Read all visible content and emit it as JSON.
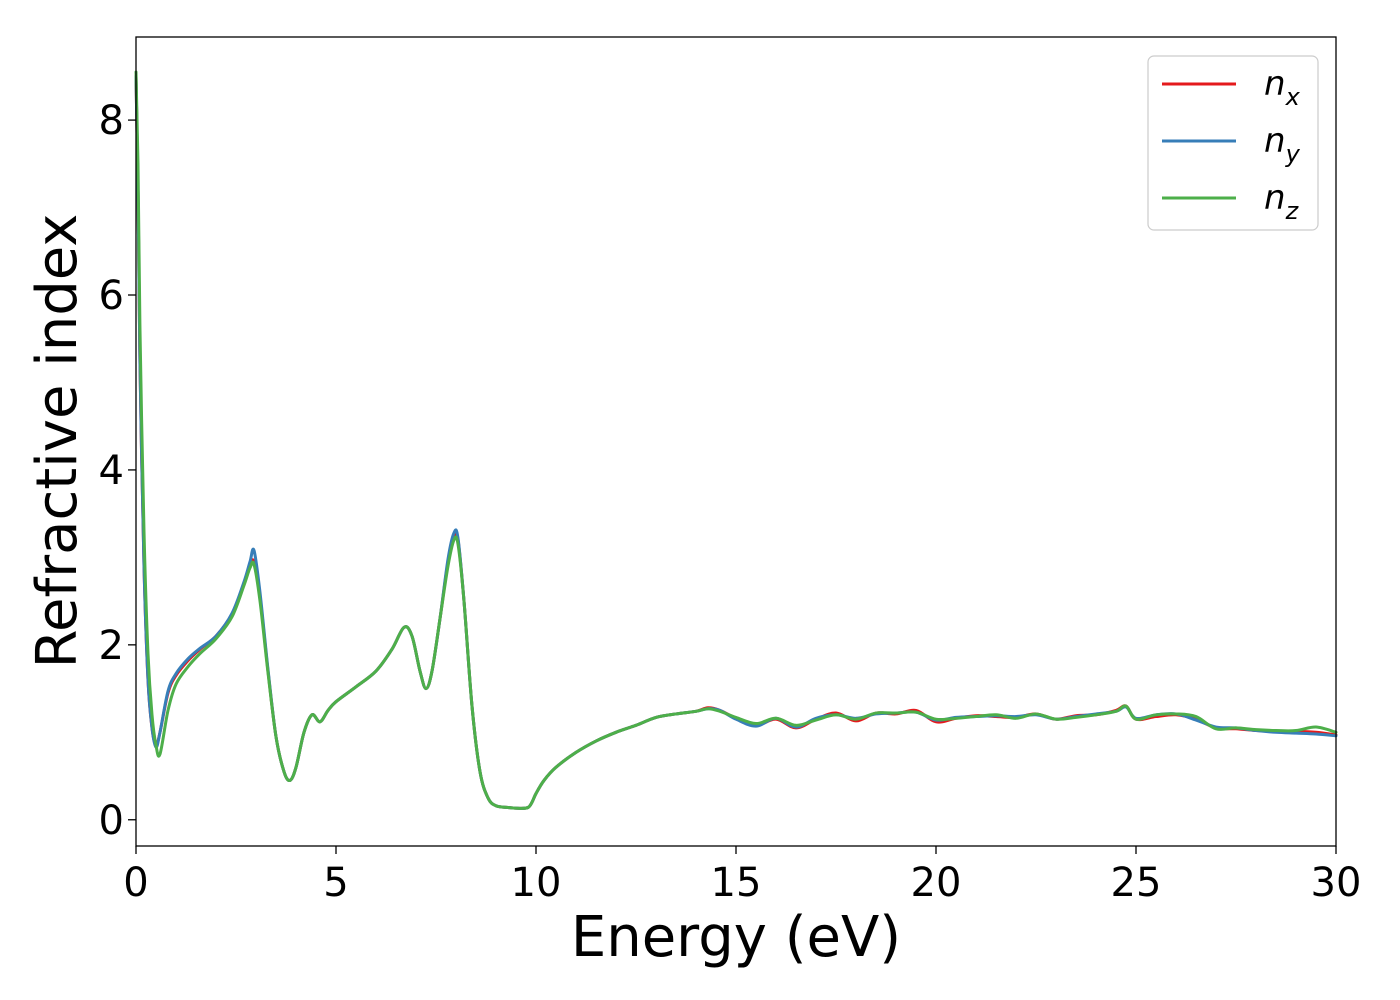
{
  "chart_data": {
    "type": "line",
    "title": "",
    "xlabel": "Energy (eV)",
    "ylabel": "Refractive index",
    "xlim": [
      0,
      30
    ],
    "ylim": [
      -0.3,
      8.95
    ],
    "xticks": [
      0,
      5,
      10,
      15,
      20,
      25,
      30
    ],
    "yticks": [
      0,
      2,
      4,
      6,
      8
    ],
    "xtick_labels": [
      "0",
      "5",
      "10",
      "15",
      "20",
      "25",
      "30"
    ],
    "ytick_labels": [
      "0",
      "2",
      "4",
      "6",
      "8"
    ],
    "grid": false,
    "legend_position": "top-right",
    "series": [
      {
        "name": "n_x",
        "label_base": "n",
        "label_sub": "x",
        "color": "#e41a1c",
        "x": [
          0,
          0.05,
          0.1,
          0.2,
          0.3,
          0.4,
          0.5,
          0.6,
          0.8,
          1.0,
          1.3,
          1.6,
          2.0,
          2.4,
          2.7,
          2.85,
          2.95,
          3.1,
          3.3,
          3.5,
          3.7,
          3.85,
          4.0,
          4.2,
          4.4,
          4.6,
          4.8,
          5.0,
          5.5,
          6.0,
          6.4,
          6.7,
          6.9,
          7.1,
          7.25,
          7.4,
          7.6,
          7.8,
          7.95,
          8.05,
          8.2,
          8.4,
          8.6,
          8.8,
          9.0,
          9.3,
          9.6,
          9.8,
          9.9,
          10.0,
          10.2,
          10.5,
          11.0,
          11.5,
          12.0,
          12.5,
          13.0,
          13.5,
          14.0,
          14.3,
          14.6,
          15.0,
          15.5,
          16.0,
          16.5,
          17.0,
          17.5,
          18.0,
          18.5,
          19.0,
          19.5,
          20.0,
          20.5,
          21.0,
          21.5,
          22.0,
          22.5,
          23.0,
          23.5,
          24.0,
          24.5,
          24.75,
          25.0,
          25.5,
          26.0,
          26.5,
          27.0,
          27.5,
          28.0,
          28.5,
          29.0,
          29.5,
          30.0
        ],
        "y": [
          8.5,
          7.2,
          5.2,
          2.9,
          1.6,
          1.05,
          0.85,
          1.0,
          1.45,
          1.65,
          1.82,
          1.95,
          2.1,
          2.35,
          2.7,
          2.9,
          2.95,
          2.55,
          1.7,
          0.95,
          0.55,
          0.45,
          0.6,
          1.0,
          1.2,
          1.12,
          1.25,
          1.35,
          1.52,
          1.7,
          1.95,
          2.2,
          2.1,
          1.7,
          1.5,
          1.7,
          2.3,
          2.95,
          3.25,
          3.2,
          2.5,
          1.3,
          0.55,
          0.25,
          0.16,
          0.14,
          0.13,
          0.14,
          0.2,
          0.3,
          0.45,
          0.6,
          0.77,
          0.9,
          1.0,
          1.08,
          1.17,
          1.21,
          1.24,
          1.28,
          1.25,
          1.16,
          1.08,
          1.15,
          1.05,
          1.15,
          1.22,
          1.13,
          1.22,
          1.21,
          1.25,
          1.12,
          1.16,
          1.19,
          1.18,
          1.17,
          1.21,
          1.15,
          1.19,
          1.2,
          1.25,
          1.3,
          1.15,
          1.18,
          1.2,
          1.15,
          1.05,
          1.04,
          1.02,
          1.01,
          1.01,
          1.0,
          0.97
        ]
      },
      {
        "name": "n_y",
        "label_base": "n",
        "label_sub": "y",
        "color": "#377eb8",
        "x": [
          0,
          0.05,
          0.1,
          0.2,
          0.3,
          0.4,
          0.5,
          0.6,
          0.8,
          1.0,
          1.3,
          1.6,
          2.0,
          2.4,
          2.7,
          2.85,
          2.95,
          3.1,
          3.3,
          3.5,
          3.7,
          3.85,
          4.0,
          4.2,
          4.4,
          4.6,
          4.8,
          5.0,
          5.5,
          6.0,
          6.4,
          6.7,
          6.9,
          7.1,
          7.25,
          7.4,
          7.6,
          7.8,
          7.95,
          8.05,
          8.2,
          8.4,
          8.6,
          8.8,
          9.0,
          9.3,
          9.6,
          9.8,
          9.9,
          10.0,
          10.2,
          10.5,
          11.0,
          11.5,
          12.0,
          12.5,
          13.0,
          13.5,
          14.0,
          14.3,
          14.6,
          15.0,
          15.5,
          16.0,
          16.5,
          17.0,
          17.5,
          18.0,
          18.5,
          19.0,
          19.5,
          20.0,
          20.5,
          21.0,
          21.5,
          22.0,
          22.5,
          23.0,
          23.5,
          24.0,
          24.5,
          24.75,
          25.0,
          25.5,
          26.0,
          26.5,
          27.0,
          27.5,
          28.0,
          28.5,
          29.0,
          29.5,
          30.0
        ],
        "y": [
          8.5,
          7.2,
          5.2,
          2.9,
          1.6,
          1.05,
          0.83,
          1.0,
          1.47,
          1.67,
          1.84,
          1.96,
          2.1,
          2.36,
          2.72,
          2.95,
          3.08,
          2.6,
          1.72,
          0.95,
          0.55,
          0.45,
          0.6,
          1.0,
          1.2,
          1.12,
          1.25,
          1.35,
          1.52,
          1.7,
          1.95,
          2.2,
          2.1,
          1.7,
          1.5,
          1.7,
          2.3,
          2.98,
          3.28,
          3.22,
          2.5,
          1.3,
          0.55,
          0.25,
          0.16,
          0.14,
          0.13,
          0.14,
          0.2,
          0.3,
          0.45,
          0.6,
          0.77,
          0.9,
          1.0,
          1.08,
          1.17,
          1.21,
          1.24,
          1.27,
          1.25,
          1.15,
          1.07,
          1.16,
          1.06,
          1.16,
          1.2,
          1.16,
          1.21,
          1.22,
          1.23,
          1.14,
          1.17,
          1.18,
          1.19,
          1.18,
          1.2,
          1.15,
          1.18,
          1.21,
          1.24,
          1.29,
          1.16,
          1.2,
          1.21,
          1.14,
          1.06,
          1.05,
          1.02,
          1.0,
          0.99,
          0.98,
          0.96
        ]
      },
      {
        "name": "n_z",
        "label_base": "n",
        "label_sub": "z",
        "color": "#4daf4a",
        "x": [
          0,
          0.05,
          0.1,
          0.2,
          0.3,
          0.4,
          0.5,
          0.6,
          0.8,
          1.0,
          1.3,
          1.6,
          2.0,
          2.4,
          2.7,
          2.85,
          2.95,
          3.1,
          3.3,
          3.5,
          3.7,
          3.85,
          4.0,
          4.2,
          4.4,
          4.6,
          4.8,
          5.0,
          5.5,
          6.0,
          6.4,
          6.7,
          6.9,
          7.1,
          7.25,
          7.4,
          7.6,
          7.8,
          7.95,
          8.05,
          8.2,
          8.4,
          8.6,
          8.8,
          9.0,
          9.3,
          9.6,
          9.8,
          9.9,
          10.0,
          10.2,
          10.5,
          11.0,
          11.5,
          12.0,
          12.5,
          13.0,
          13.5,
          14.0,
          14.3,
          14.6,
          15.0,
          15.5,
          16.0,
          16.5,
          17.0,
          17.5,
          18.0,
          18.5,
          19.0,
          19.5,
          20.0,
          20.5,
          21.0,
          21.5,
          22.0,
          22.5,
          23.0,
          23.5,
          24.0,
          24.5,
          24.75,
          25.0,
          25.5,
          26.0,
          26.5,
          27.0,
          27.5,
          28.0,
          28.5,
          29.0,
          29.5,
          30.0
        ],
        "y": [
          8.55,
          7.5,
          5.6,
          3.3,
          1.9,
          1.2,
          0.85,
          0.75,
          1.25,
          1.55,
          1.75,
          1.9,
          2.07,
          2.32,
          2.68,
          2.88,
          2.92,
          2.5,
          1.68,
          0.95,
          0.55,
          0.45,
          0.6,
          1.0,
          1.2,
          1.12,
          1.25,
          1.35,
          1.52,
          1.7,
          1.95,
          2.2,
          2.1,
          1.7,
          1.5,
          1.7,
          2.3,
          2.9,
          3.2,
          3.15,
          2.5,
          1.3,
          0.55,
          0.25,
          0.16,
          0.14,
          0.13,
          0.14,
          0.2,
          0.3,
          0.45,
          0.6,
          0.77,
          0.9,
          1.0,
          1.08,
          1.17,
          1.21,
          1.24,
          1.27,
          1.24,
          1.17,
          1.1,
          1.16,
          1.08,
          1.14,
          1.2,
          1.15,
          1.22,
          1.22,
          1.23,
          1.15,
          1.16,
          1.18,
          1.2,
          1.16,
          1.21,
          1.15,
          1.17,
          1.2,
          1.24,
          1.3,
          1.15,
          1.2,
          1.21,
          1.18,
          1.04,
          1.05,
          1.03,
          1.02,
          1.02,
          1.06,
          1.0
        ]
      }
    ]
  }
}
